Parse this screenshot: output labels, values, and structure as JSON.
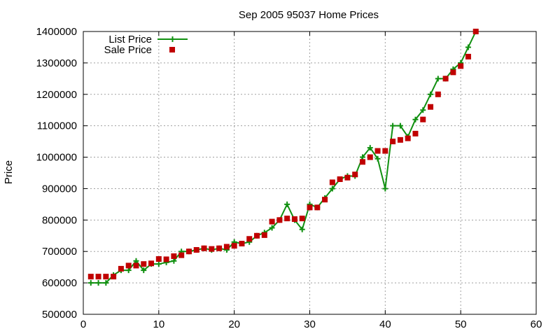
{
  "chart_data": {
    "type": "line",
    "title": "Sep 2005 95037 Home Prices",
    "xlabel": "",
    "ylabel": "Price",
    "xlim": [
      0,
      60
    ],
    "ylim": [
      500000,
      1400000
    ],
    "xticks": [
      0,
      10,
      20,
      30,
      40,
      50,
      60
    ],
    "yticks": [
      500000,
      600000,
      700000,
      800000,
      900000,
      1000000,
      1100000,
      1200000,
      1300000,
      1400000
    ],
    "grid": true,
    "legend_position": "top-left",
    "series": [
      {
        "name": "List Price",
        "style": "line+cross",
        "color": "#109010",
        "x": [
          1,
          2,
          3,
          4,
          5,
          6,
          7,
          8,
          9,
          10,
          11,
          12,
          13,
          14,
          15,
          16,
          17,
          18,
          19,
          20,
          21,
          22,
          23,
          24,
          25,
          26,
          27,
          28,
          29,
          30,
          31,
          32,
          33,
          34,
          35,
          36,
          37,
          38,
          39,
          40,
          41,
          42,
          43,
          44,
          45,
          46,
          47,
          48,
          49,
          50,
          51,
          52
        ],
        "y": [
          600000,
          600000,
          600000,
          625000,
          640000,
          640000,
          670000,
          640000,
          660000,
          660000,
          665000,
          670000,
          700000,
          700000,
          705000,
          710000,
          705000,
          710000,
          705000,
          730000,
          725000,
          730000,
          750000,
          760000,
          775000,
          800000,
          850000,
          800000,
          770000,
          850000,
          840000,
          870000,
          900000,
          930000,
          940000,
          940000,
          1000000,
          1030000,
          995000,
          900000,
          1100000,
          1100000,
          1065000,
          1120000,
          1150000,
          1200000,
          1250000,
          1250000,
          1280000,
          1300000,
          1350000,
          1400000
        ]
      },
      {
        "name": "Sale Price",
        "style": "square",
        "color": "#c00000",
        "x": [
          1,
          2,
          3,
          4,
          5,
          6,
          7,
          8,
          9,
          10,
          11,
          12,
          13,
          14,
          15,
          16,
          17,
          18,
          19,
          20,
          21,
          22,
          23,
          24,
          25,
          26,
          27,
          28,
          29,
          30,
          31,
          32,
          33,
          34,
          35,
          36,
          37,
          38,
          39,
          40,
          41,
          42,
          43,
          44,
          45,
          46,
          47,
          48,
          49,
          50,
          51,
          52
        ],
        "y": [
          620000,
          620000,
          620000,
          620000,
          645000,
          655000,
          655000,
          660000,
          662000,
          676000,
          675000,
          685000,
          688000,
          700000,
          705000,
          710000,
          708000,
          710000,
          715000,
          718000,
          725000,
          740000,
          750000,
          752000,
          795000,
          800000,
          805000,
          803000,
          805000,
          840000,
          840000,
          865000,
          920000,
          930000,
          935000,
          945000,
          985000,
          1000000,
          1020000,
          1020000,
          1050000,
          1055000,
          1060000,
          1075000,
          1120000,
          1160000,
          1200000,
          1250000,
          1270000,
          1290000,
          1320000,
          1400000
        ]
      }
    ]
  }
}
